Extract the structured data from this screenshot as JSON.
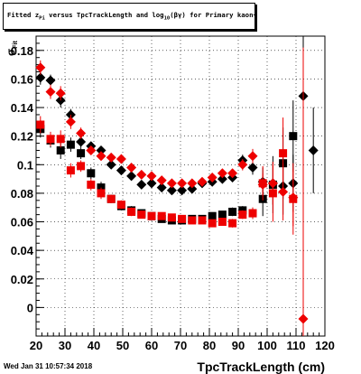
{
  "chart_data": {
    "type": "scatter",
    "title_parts": {
      "prefix": "Fitted  z",
      "prefix_sub": "Pi",
      "middle": " versus TpcTrackLength and log",
      "middle_sub": "10",
      "suffix": "(βγ) for Primary kaon+"
    },
    "xlabel": "TpcTrackLength (cm)",
    "ylabel_main": "σ",
    "ylabel_sub": "Fit",
    "xlim": [
      20,
      120
    ],
    "ylim": [
      -0.02,
      0.19
    ],
    "xticks": [
      "20",
      "30",
      "40",
      "50",
      "60",
      "70",
      "80",
      "90",
      "100",
      "110",
      "120"
    ],
    "yticks": [
      "0",
      "0.02",
      "0.04",
      "0.06",
      "0.08",
      "0.1",
      "0.12",
      "0.14",
      "0.16",
      "0.18"
    ],
    "grid": true,
    "series": [
      {
        "marker": "diamond",
        "color": "#000000",
        "points": [
          {
            "x": 21.5,
            "y": 0.161,
            "err": 0.005
          },
          {
            "x": 25,
            "y": 0.159,
            "err": 0.004
          },
          {
            "x": 28.5,
            "y": 0.145,
            "err": 0.005
          },
          {
            "x": 32,
            "y": 0.135,
            "err": 0.004
          },
          {
            "x": 35.5,
            "y": 0.116,
            "err": 0.004
          },
          {
            "x": 39,
            "y": 0.113,
            "err": 0.003
          },
          {
            "x": 42.5,
            "y": 0.11,
            "err": 0.003
          },
          {
            "x": 46,
            "y": 0.1,
            "err": 0.003
          },
          {
            "x": 49.5,
            "y": 0.096,
            "err": 0.003
          },
          {
            "x": 53,
            "y": 0.092,
            "err": 0.002
          },
          {
            "x": 56.5,
            "y": 0.086,
            "err": 0.002
          },
          {
            "x": 60,
            "y": 0.087,
            "err": 0.002
          },
          {
            "x": 63.5,
            "y": 0.084,
            "err": 0.002
          },
          {
            "x": 67,
            "y": 0.082,
            "err": 0.002
          },
          {
            "x": 70.5,
            "y": 0.082,
            "err": 0.002
          },
          {
            "x": 74,
            "y": 0.083,
            "err": 0.002
          },
          {
            "x": 77.5,
            "y": 0.087,
            "err": 0.002
          },
          {
            "x": 81,
            "y": 0.088,
            "err": 0.002
          },
          {
            "x": 84.5,
            "y": 0.09,
            "err": 0.002
          },
          {
            "x": 88,
            "y": 0.091,
            "err": 0.003
          },
          {
            "x": 91.5,
            "y": 0.103,
            "err": 0.004
          },
          {
            "x": 95,
            "y": 0.098,
            "err": 0.005
          },
          {
            "x": 98.5,
            "y": 0.088,
            "err": 0.01
          },
          {
            "x": 102,
            "y": 0.087,
            "err": 0.015
          },
          {
            "x": 105.5,
            "y": 0.085,
            "err": 0.02
          },
          {
            "x": 109,
            "y": 0.087,
            "err": 0.02
          },
          {
            "x": 112.5,
            "y": 0.148,
            "err": 0.045
          },
          {
            "x": 116,
            "y": 0.11,
            "err": 0.03
          }
        ]
      },
      {
        "marker": "square",
        "color": "#000000",
        "points": [
          {
            "x": 21.5,
            "y": 0.125,
            "err": 0.006
          },
          {
            "x": 25,
            "y": 0.117,
            "err": 0.005
          },
          {
            "x": 28.5,
            "y": 0.11,
            "err": 0.006
          },
          {
            "x": 32,
            "y": 0.114,
            "err": 0.005
          },
          {
            "x": 35.5,
            "y": 0.108,
            "err": 0.004
          },
          {
            "x": 39,
            "y": 0.094,
            "err": 0.004
          },
          {
            "x": 42.5,
            "y": 0.084,
            "err": 0.004
          },
          {
            "x": 46,
            "y": 0.076,
            "err": 0.003
          },
          {
            "x": 49.5,
            "y": 0.071,
            "err": 0.003
          },
          {
            "x": 53,
            "y": 0.068,
            "err": 0.003
          },
          {
            "x": 56.5,
            "y": 0.066,
            "err": 0.002
          },
          {
            "x": 60,
            "y": 0.064,
            "err": 0.002
          },
          {
            "x": 63.5,
            "y": 0.062,
            "err": 0.002
          },
          {
            "x": 67,
            "y": 0.061,
            "err": 0.002
          },
          {
            "x": 70.5,
            "y": 0.061,
            "err": 0.002
          },
          {
            "x": 74,
            "y": 0.062,
            "err": 0.002
          },
          {
            "x": 77.5,
            "y": 0.062,
            "err": 0.002
          },
          {
            "x": 81,
            "y": 0.064,
            "err": 0.002
          },
          {
            "x": 84.5,
            "y": 0.065,
            "err": 0.002
          },
          {
            "x": 88,
            "y": 0.067,
            "err": 0.003
          },
          {
            "x": 91.5,
            "y": 0.068,
            "err": 0.003
          },
          {
            "x": 95,
            "y": 0.066,
            "err": 0.004
          },
          {
            "x": 98.5,
            "y": 0.076,
            "err": 0.012
          },
          {
            "x": 102,
            "y": 0.086,
            "err": 0.02
          },
          {
            "x": 105.5,
            "y": 0.101,
            "err": 0.025
          },
          {
            "x": 109,
            "y": 0.12,
            "err": 0.025
          }
        ]
      },
      {
        "marker": "diamond",
        "color": "#ee0000",
        "points": [
          {
            "x": 21.5,
            "y": 0.168,
            "err": 0.005
          },
          {
            "x": 25,
            "y": 0.151,
            "err": 0.005
          },
          {
            "x": 28.5,
            "y": 0.15,
            "err": 0.005
          },
          {
            "x": 32,
            "y": 0.13,
            "err": 0.005
          },
          {
            "x": 35.5,
            "y": 0.122,
            "err": 0.004
          },
          {
            "x": 39,
            "y": 0.11,
            "err": 0.003
          },
          {
            "x": 42.5,
            "y": 0.106,
            "err": 0.003
          },
          {
            "x": 46,
            "y": 0.105,
            "err": 0.003
          },
          {
            "x": 49.5,
            "y": 0.104,
            "err": 0.003
          },
          {
            "x": 53,
            "y": 0.098,
            "err": 0.002
          },
          {
            "x": 56.5,
            "y": 0.093,
            "err": 0.002
          },
          {
            "x": 60,
            "y": 0.092,
            "err": 0.002
          },
          {
            "x": 63.5,
            "y": 0.089,
            "err": 0.002
          },
          {
            "x": 67,
            "y": 0.087,
            "err": 0.002
          },
          {
            "x": 70.5,
            "y": 0.087,
            "err": 0.002
          },
          {
            "x": 74,
            "y": 0.087,
            "err": 0.002
          },
          {
            "x": 77.5,
            "y": 0.088,
            "err": 0.002
          },
          {
            "x": 81,
            "y": 0.091,
            "err": 0.002
          },
          {
            "x": 84.5,
            "y": 0.094,
            "err": 0.002
          },
          {
            "x": 88,
            "y": 0.094,
            "err": 0.003
          },
          {
            "x": 91.5,
            "y": 0.1,
            "err": 0.004
          },
          {
            "x": 95,
            "y": 0.106,
            "err": 0.005
          },
          {
            "x": 98.5,
            "y": 0.086,
            "err": 0.008
          },
          {
            "x": 102,
            "y": 0.087,
            "err": 0.015
          },
          {
            "x": 105.5,
            "y": 0.081,
            "err": 0.02
          },
          {
            "x": 109,
            "y": 0.077,
            "err": 0.02
          },
          {
            "x": 112.5,
            "y": -0.008,
            "err": 0.19
          }
        ]
      },
      {
        "marker": "square",
        "color": "#ee0000",
        "points": [
          {
            "x": 21.5,
            "y": 0.128,
            "err": 0.006
          },
          {
            "x": 25,
            "y": 0.118,
            "err": 0.005
          },
          {
            "x": 28.5,
            "y": 0.118,
            "err": 0.006
          },
          {
            "x": 32,
            "y": 0.096,
            "err": 0.005
          },
          {
            "x": 35.5,
            "y": 0.099,
            "err": 0.004
          },
          {
            "x": 39,
            "y": 0.086,
            "err": 0.004
          },
          {
            "x": 42.5,
            "y": 0.08,
            "err": 0.004
          },
          {
            "x": 46,
            "y": 0.076,
            "err": 0.003
          },
          {
            "x": 49.5,
            "y": 0.072,
            "err": 0.003
          },
          {
            "x": 53,
            "y": 0.067,
            "err": 0.003
          },
          {
            "x": 56.5,
            "y": 0.065,
            "err": 0.002
          },
          {
            "x": 60,
            "y": 0.064,
            "err": 0.002
          },
          {
            "x": 63.5,
            "y": 0.064,
            "err": 0.002
          },
          {
            "x": 67,
            "y": 0.063,
            "err": 0.002
          },
          {
            "x": 70.5,
            "y": 0.062,
            "err": 0.002
          },
          {
            "x": 74,
            "y": 0.061,
            "err": 0.002
          },
          {
            "x": 77.5,
            "y": 0.061,
            "err": 0.002
          },
          {
            "x": 81,
            "y": 0.059,
            "err": 0.002
          },
          {
            "x": 84.5,
            "y": 0.06,
            "err": 0.002
          },
          {
            "x": 88,
            "y": 0.059,
            "err": 0.003
          },
          {
            "x": 91.5,
            "y": 0.065,
            "err": 0.003
          },
          {
            "x": 95,
            "y": 0.066,
            "err": 0.004
          },
          {
            "x": 98.5,
            "y": 0.087,
            "err": 0.012
          },
          {
            "x": 102,
            "y": 0.08,
            "err": 0.02
          },
          {
            "x": 105.5,
            "y": 0.108,
            "err": 0.025
          },
          {
            "x": 109,
            "y": 0.076,
            "err": 0.025
          }
        ]
      }
    ]
  },
  "footer": {
    "date": "Wed Jan 31 10:57:34 2018"
  }
}
